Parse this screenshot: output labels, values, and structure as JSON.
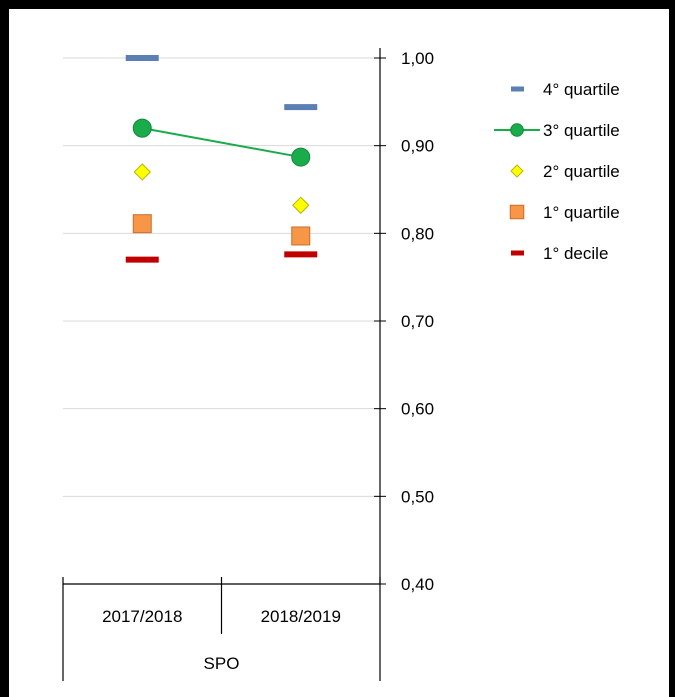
{
  "chart_data": {
    "type": "scatter",
    "title": "",
    "group_label": "SPO",
    "categories": [
      "2017/2018",
      "2018/2019"
    ],
    "yaxis": {
      "position": "right",
      "min": 0.4,
      "max": 1.0,
      "step": 0.1,
      "tick_labels": [
        "0,40",
        "0,50",
        "0,60",
        "0,70",
        "0,80",
        "0,90",
        "1,00"
      ]
    },
    "grid": true,
    "legend_position": "right",
    "series": [
      {
        "name": "4° quartile",
        "marker": "dash",
        "color": "#5b7fb2",
        "line": false,
        "values": [
          1.0,
          0.944
        ]
      },
      {
        "name": "3° quartile",
        "marker": "circle",
        "color": "#1aab4b",
        "line": true,
        "values": [
          0.92,
          0.887
        ]
      },
      {
        "name": "2° quartile",
        "marker": "diamond",
        "color": "#ffff00",
        "line": false,
        "values": [
          0.87,
          0.832
        ]
      },
      {
        "name": "1° quartile",
        "marker": "square",
        "color": "#f79646",
        "line": false,
        "values": [
          0.811,
          0.797
        ]
      },
      {
        "name": "1° decile",
        "marker": "dash",
        "color": "#c00000",
        "line": false,
        "values": [
          0.77,
          0.776
        ]
      }
    ]
  }
}
